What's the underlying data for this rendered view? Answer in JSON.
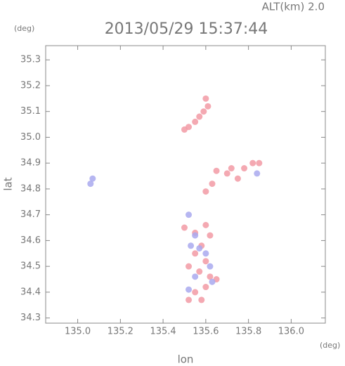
{
  "chart_data": {
    "type": "scatter",
    "title": "2013/05/29 15:37:44",
    "subtitle": "ALT(km) 2.0",
    "x_unit": "(deg)",
    "y_unit": "(deg)",
    "x_label": "lon",
    "y_label": "lat",
    "xlim": [
      134.85,
      136.16
    ],
    "ylim": [
      34.28,
      35.355
    ],
    "xticks": [
      {
        "value": 135,
        "label": "135.0"
      },
      135.2,
      135.4,
      135.6,
      135.8,
      {
        "value": 136,
        "label": "136.0"
      }
    ],
    "yticks": [
      34.3,
      34.4,
      34.5,
      34.6,
      34.7,
      34.8,
      34.9,
      {
        "value": 35,
        "label": "35.0"
      },
      35.1,
      35.2,
      35.3
    ],
    "grid": false,
    "series": [
      {
        "color": "#f29aa4",
        "x": [
          135.6,
          135.61,
          135.59,
          135.57,
          135.55,
          135.52,
          135.5,
          135.72,
          135.7,
          135.75,
          135.78,
          135.82,
          135.85,
          135.65,
          135.63,
          135.6,
          135.5,
          135.55,
          135.6,
          135.62,
          135.58,
          135.55,
          135.6,
          135.57,
          135.62,
          135.6,
          135.55,
          135.52,
          135.58,
          135.65,
          135.52
        ],
        "values": [
          35.15,
          35.12,
          35.1,
          35.08,
          35.06,
          35.04,
          35.03,
          34.88,
          34.86,
          34.84,
          34.88,
          34.9,
          34.9,
          34.87,
          34.82,
          34.79,
          34.65,
          34.63,
          34.66,
          34.62,
          34.58,
          34.55,
          34.52,
          34.48,
          34.46,
          34.42,
          34.4,
          34.37,
          34.37,
          34.45,
          34.5
        ]
      },
      {
        "color": "#a9a9ee",
        "x": [
          135.07,
          135.06,
          135.52,
          135.55,
          135.57,
          135.53,
          135.62,
          135.55,
          135.63,
          135.52,
          135.6,
          135.84
        ],
        "values": [
          34.84,
          34.82,
          34.7,
          34.62,
          34.57,
          34.58,
          34.5,
          34.46,
          34.44,
          34.41,
          34.55,
          34.86
        ]
      }
    ]
  }
}
